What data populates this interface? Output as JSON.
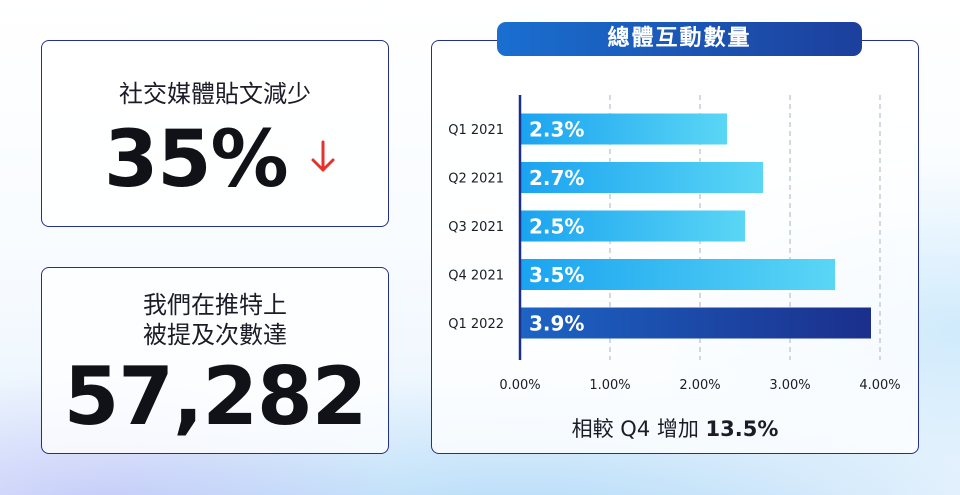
{
  "cards": {
    "posts": {
      "label": "社交媒體貼文減少",
      "value": "35%",
      "trend_icon": "arrow-down-icon",
      "trend_color": "#e5322d"
    },
    "mentions": {
      "label_line1": "我們在推特上",
      "label_line2": "被提及次數達",
      "value": "57,282"
    }
  },
  "chart_title": "總體互動數量",
  "chart_data": {
    "type": "bar",
    "orientation": "horizontal",
    "title": "總體互動數量",
    "categories": [
      "Q1 2021",
      "Q2 2021",
      "Q3 2021",
      "Q4 2021",
      "Q1 2022"
    ],
    "values": [
      2.3,
      2.7,
      2.5,
      3.5,
      3.9
    ],
    "value_labels": [
      "2.3%",
      "2.7%",
      "2.5%",
      "3.5%",
      "3.9%"
    ],
    "xlim": [
      0,
      4
    ],
    "xticks": [
      "0.00%",
      "1.00%",
      "2.00%",
      "3.00%",
      "4.00%"
    ],
    "grid": "vertical-dashed",
    "highlight_index": 4,
    "colors": {
      "bar_start": "#1aa3f0",
      "bar_end": "#5ad6f5",
      "highlight_start": "#1d64c4",
      "highlight_end": "#1b2f8c",
      "axis": "#1b2f8c",
      "grid": "#a9b3c2"
    }
  },
  "footnote": {
    "prefix": "相較 Q4 增加 ",
    "value": "13.5%"
  }
}
